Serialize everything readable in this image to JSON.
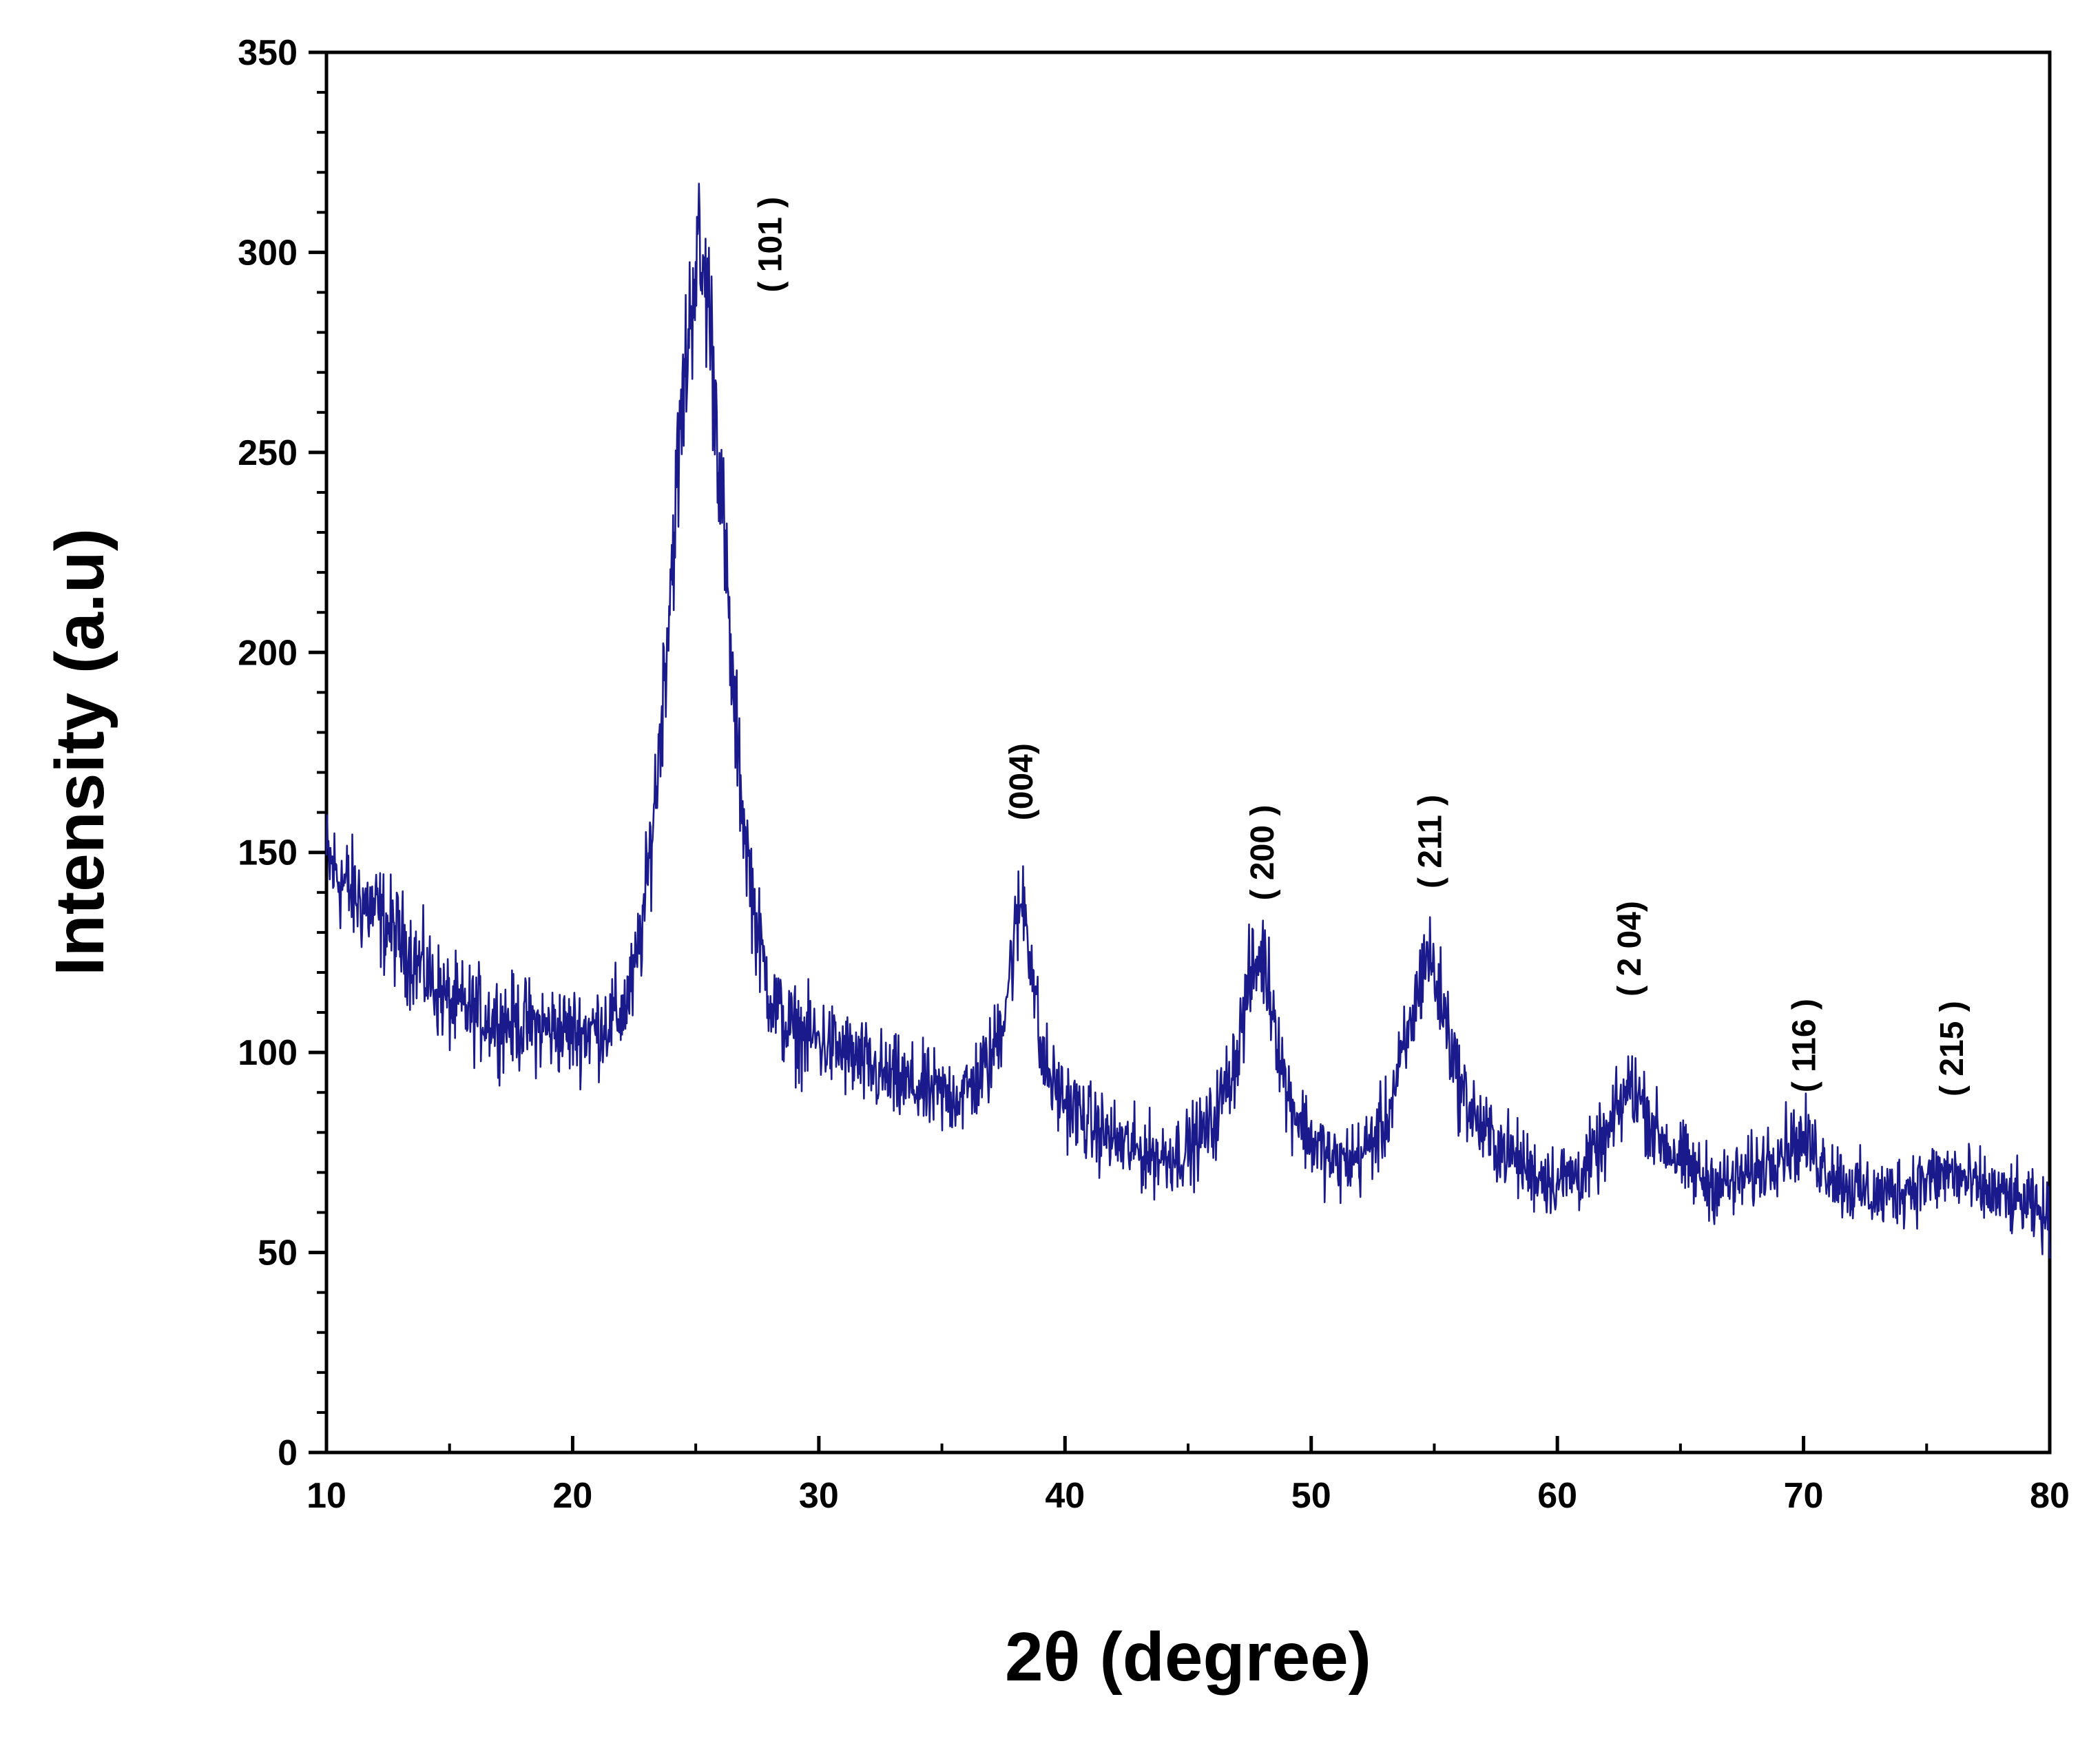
{
  "chart_data": {
    "type": "line",
    "title": "",
    "xlabel": "2θ (degree)",
    "ylabel": "Intensity (a.u)",
    "xlim": [
      10,
      80
    ],
    "ylim": [
      0,
      350
    ],
    "xticks": [
      10,
      20,
      30,
      40,
      50,
      60,
      70,
      80
    ],
    "yticks": [
      0,
      50,
      100,
      150,
      200,
      250,
      300,
      350
    ],
    "grid": false,
    "line_color": "#1a1a8c",
    "series": [
      {
        "x": [
          10,
          11,
          12,
          13,
          14,
          15,
          16,
          17,
          18,
          19,
          20,
          21,
          22,
          22.5,
          23,
          23.5,
          24,
          24.5,
          25,
          25.5,
          26,
          26.5,
          27,
          27.5,
          28,
          28.5,
          29,
          30,
          31,
          32,
          33,
          34,
          35,
          36,
          37,
          37.5,
          38,
          38.3,
          38.7,
          39,
          39.5,
          40,
          41,
          42,
          43,
          44,
          45,
          46,
          47,
          47.5,
          48,
          48.5,
          49,
          50,
          51,
          52,
          53,
          54,
          54.7,
          55.5,
          56,
          57,
          58,
          59,
          60,
          61,
          62,
          62.5,
          63,
          63.5,
          64,
          65,
          66,
          67,
          68,
          69,
          70,
          71,
          72,
          73,
          74,
          75,
          76,
          77,
          78,
          79,
          80
        ],
        "y": [
          148,
          140,
          135,
          128,
          120,
          112,
          110,
          108,
          107,
          106,
          105,
          106,
          110,
          118,
          140,
          175,
          220,
          265,
          300,
          290,
          245,
          190,
          155,
          130,
          115,
          108,
          105,
          103,
          100,
          96,
          93,
          91,
          89,
          90,
          98,
          110,
          130,
          140,
          120,
          100,
          92,
          88,
          82,
          78,
          75,
          74,
          76,
          82,
          100,
          118,
          125,
          110,
          90,
          78,
          72,
          74,
          82,
          105,
          126,
          108,
          92,
          80,
          75,
          70,
          68,
          70,
          78,
          86,
          92,
          87,
          80,
          73,
          68,
          67,
          70,
          76,
          78,
          71,
          66,
          64,
          66,
          68,
          70,
          66,
          64,
          62,
          58
        ]
      }
    ],
    "annotations": [
      {
        "text": "( 101 )",
        "x": 28.0,
        "y": 290
      },
      {
        "text": "(004)",
        "x": 38.2,
        "y": 158
      },
      {
        "text": "( 200 )",
        "x": 48.0,
        "y": 138
      },
      {
        "text": "( 211 )",
        "x": 54.8,
        "y": 141
      },
      {
        "text": "( 2 04)",
        "x": 62.9,
        "y": 114
      },
      {
        "text": "( 116 )",
        "x": 70.0,
        "y": 90
      },
      {
        "text": "( 215 )",
        "x": 76.0,
        "y": 89
      }
    ]
  }
}
